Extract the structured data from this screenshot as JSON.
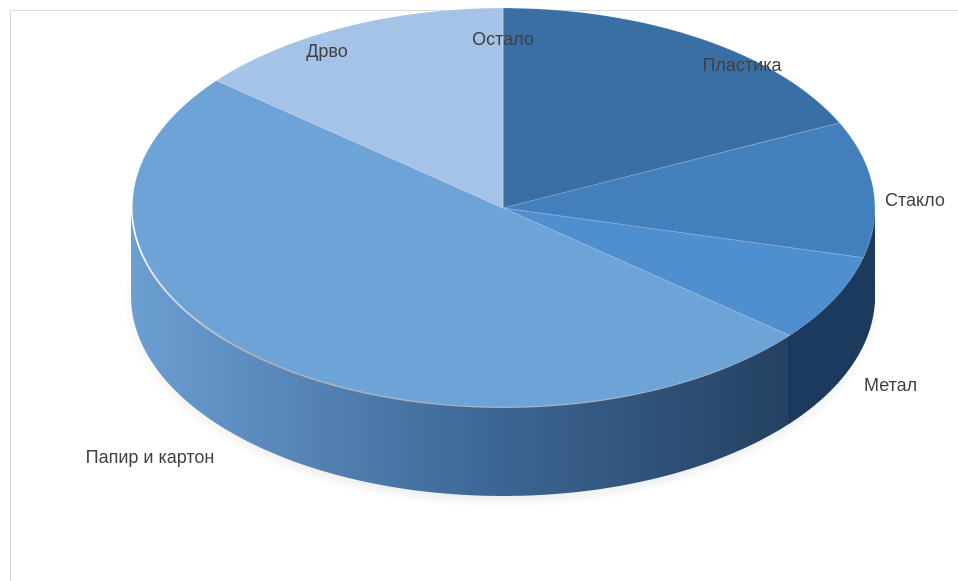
{
  "chart_data": {
    "type": "pie",
    "style": "3d",
    "title": "",
    "slices": [
      {
        "label": "Пластика",
        "value": 18,
        "color": "#3a6fa5"
      },
      {
        "label": "Стакло",
        "value": 11,
        "color": "#437fbd"
      },
      {
        "label": "Метал",
        "value": 7,
        "color": "#4f8fcf"
      },
      {
        "label": "Папир и картон",
        "value": 50,
        "color": "#6ea3d8"
      },
      {
        "label": "Дрво",
        "value": 14,
        "color": "#a5c3e6"
      },
      {
        "label": "Остало",
        "value": 0,
        "color": "#b6cfea"
      }
    ],
    "legend": "none",
    "data_labels": "outside"
  }
}
